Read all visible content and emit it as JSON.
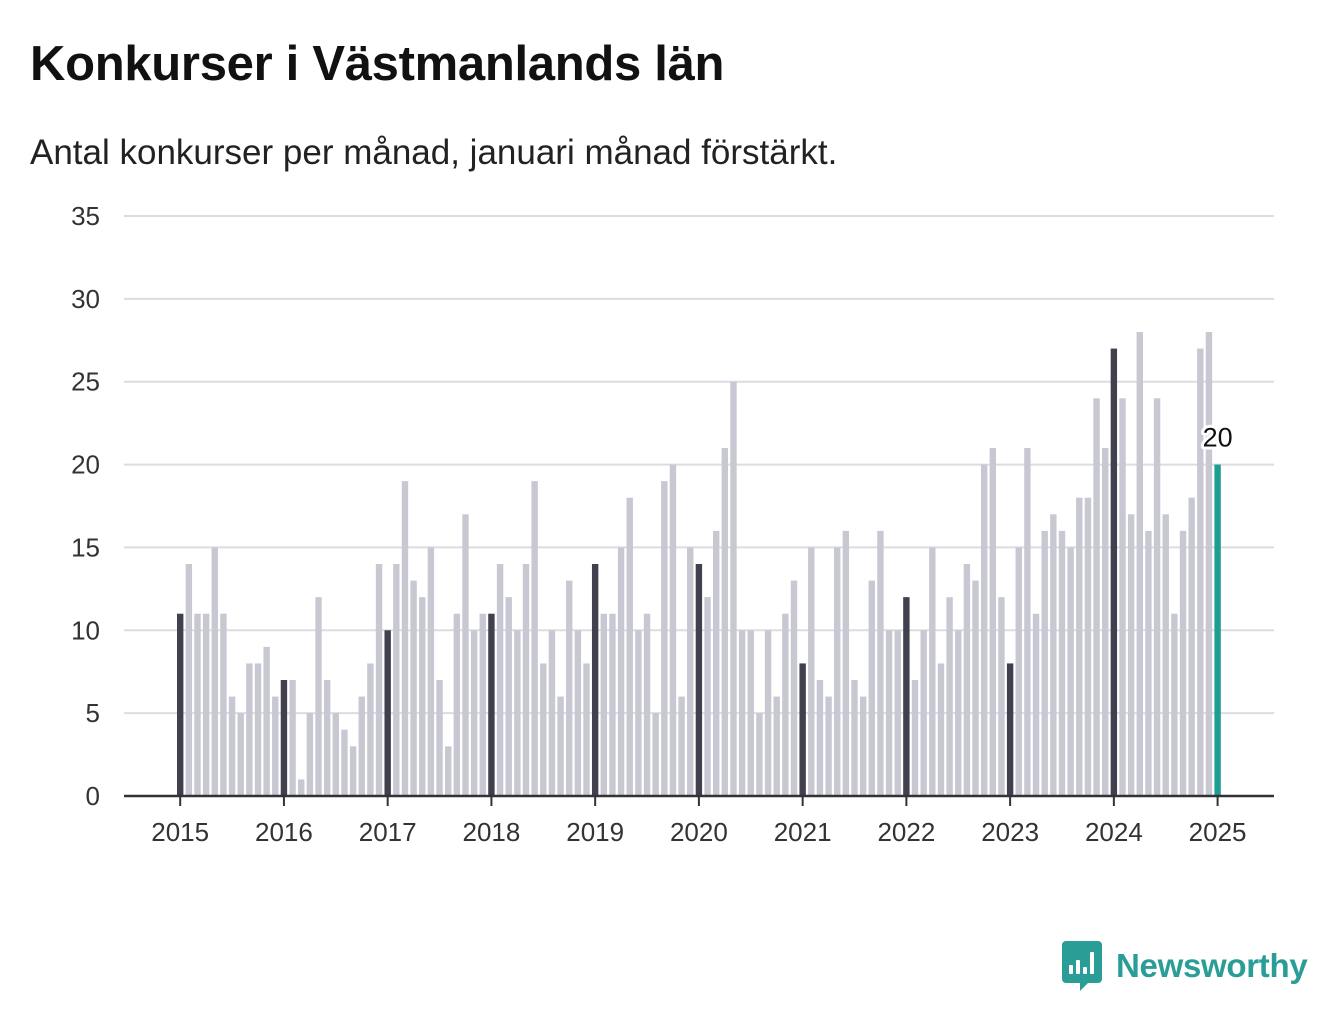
{
  "title": "Konkurser i Västmanlands län",
  "subtitle": "Antal konkurser per månad, januari månad förstärkt.",
  "brand": {
    "name": "Newsworthy",
    "icon": "newsworthy-logo-icon",
    "color": "#2a9d96"
  },
  "colors": {
    "bar": "#c8c8d3",
    "january": "#40404e",
    "latest": "#1d9e92",
    "grid": "#dcdce2",
    "axis": "#333333"
  },
  "chart_data": {
    "type": "bar",
    "ylim": [
      0,
      35
    ],
    "yticks": [
      0,
      5,
      10,
      15,
      20,
      25,
      30,
      35
    ],
    "xticks": [
      "2015",
      "2016",
      "2017",
      "2018",
      "2019",
      "2020",
      "2021",
      "2022",
      "2023",
      "2024",
      "2025"
    ],
    "start": "2015-01",
    "grid": true,
    "highlight": "januari",
    "latest_label": "20",
    "values": [
      11,
      14,
      11,
      11,
      15,
      11,
      6,
      5,
      8,
      8,
      9,
      6,
      7,
      7,
      1,
      5,
      12,
      7,
      5,
      4,
      3,
      6,
      8,
      14,
      10,
      14,
      19,
      13,
      12,
      15,
      7,
      3,
      11,
      17,
      10,
      11,
      11,
      14,
      12,
      10,
      14,
      19,
      8,
      10,
      6,
      13,
      10,
      8,
      14,
      11,
      11,
      15,
      18,
      10,
      11,
      5,
      19,
      20,
      6,
      15,
      14,
      12,
      16,
      21,
      25,
      10,
      10,
      5,
      10,
      6,
      11,
      13,
      8,
      15,
      7,
      6,
      15,
      16,
      7,
      6,
      13,
      16,
      10,
      10,
      12,
      7,
      10,
      15,
      8,
      12,
      10,
      14,
      13,
      20,
      21,
      12,
      8,
      15,
      21,
      11,
      16,
      17,
      16,
      15,
      18,
      18,
      24,
      21,
      27,
      24,
      17,
      28,
      16,
      24,
      17,
      11,
      16,
      18,
      27,
      28,
      20
    ]
  }
}
